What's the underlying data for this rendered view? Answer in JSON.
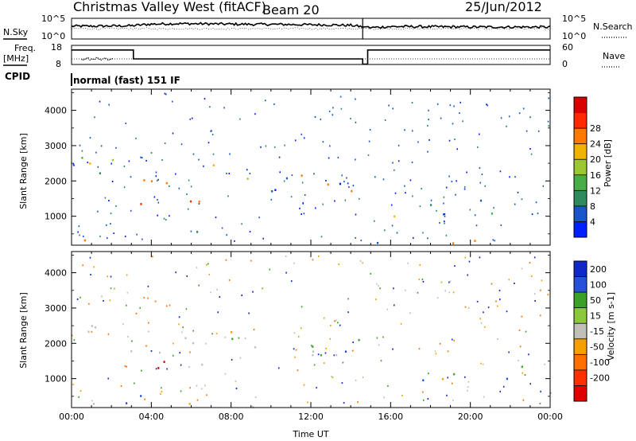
{
  "header": {
    "station": "Christmas Valley West (fitACF)",
    "beam": "Beam 20",
    "date": "25/Jun/2012"
  },
  "summary": {
    "nsky_label": "N.Sky",
    "nsearch_label": "N.Search",
    "noise_ticks": [
      "10^5",
      "10^0"
    ],
    "noise_right_ticks": [
      "10^5",
      "10^0"
    ],
    "freq_label_1": "Freq.",
    "freq_label_2": "[MHz]",
    "freq_ticks": [
      "18",
      "8"
    ],
    "nave_label": "Nave",
    "nave_ticks": [
      "60",
      "0"
    ],
    "cpid_label": "CPID",
    "cpid_value": "normal (fast) 151 IF"
  },
  "chart_data": [
    {
      "type": "heatmap",
      "quantity": "Power",
      "ylabel": "Slant Range [km]",
      "ylim": [
        180,
        4600
      ],
      "yticks": [
        1000,
        2000,
        3000,
        4000
      ],
      "xlim": [
        0,
        24
      ],
      "colorbar_label": "Power [dB]",
      "colorbar_ticks": [
        4,
        8,
        12,
        16,
        20,
        24,
        28
      ],
      "colorbar_range": [
        0,
        30
      ],
      "colors": [
        "#0020ff",
        "#1a55c8",
        "#2e8a5a",
        "#47ad47",
        "#9bc832",
        "#f0b400",
        "#ff7800",
        "#ff2800",
        "#d80000"
      ]
    },
    {
      "type": "heatmap",
      "quantity": "Velocity",
      "ylabel": "Slant Range [km]",
      "xlabel": "Time UT",
      "ylim": [
        180,
        4600
      ],
      "yticks": [
        1000,
        2000,
        3000,
        4000
      ],
      "xlim": [
        0,
        24
      ],
      "xticks": [
        "00:00",
        "04:00",
        "08:00",
        "12:00",
        "16:00",
        "20:00",
        "00:00"
      ],
      "colorbar_label": "Velocity [m s-1]",
      "colorbar_ticks": [
        "200",
        "100",
        "50",
        "15",
        "-15",
        "-50",
        "-100",
        "-200"
      ],
      "colors": [
        "#1028c8",
        "#2850d8",
        "#3ca028",
        "#8cc83c",
        "#c0c0b8",
        "#f5a000",
        "#ff7000",
        "#ff3000",
        "#e00000"
      ]
    }
  ],
  "noise_series": {
    "sky_level_per_hour": [
      0.62,
      0.62,
      0.63,
      0.64,
      0.72,
      0.74,
      0.74,
      0.73,
      0.72,
      0.71,
      0.71,
      0.7,
      0.69,
      0.68,
      0.66,
      0.55,
      0.6,
      0.6,
      0.59,
      0.59,
      0.58,
      0.58,
      0.58,
      0.58,
      0.58
    ]
  },
  "freq_series": {
    "segments": [
      {
        "start": 0,
        "end": 3.1,
        "mhz": 15.6
      },
      {
        "start": 3.1,
        "end": 14.6,
        "mhz": 10.9
      },
      {
        "start": 14.6,
        "end": 14.85,
        "mhz": 8.2
      },
      {
        "start": 14.85,
        "end": 24,
        "mhz": 15.6
      }
    ]
  }
}
